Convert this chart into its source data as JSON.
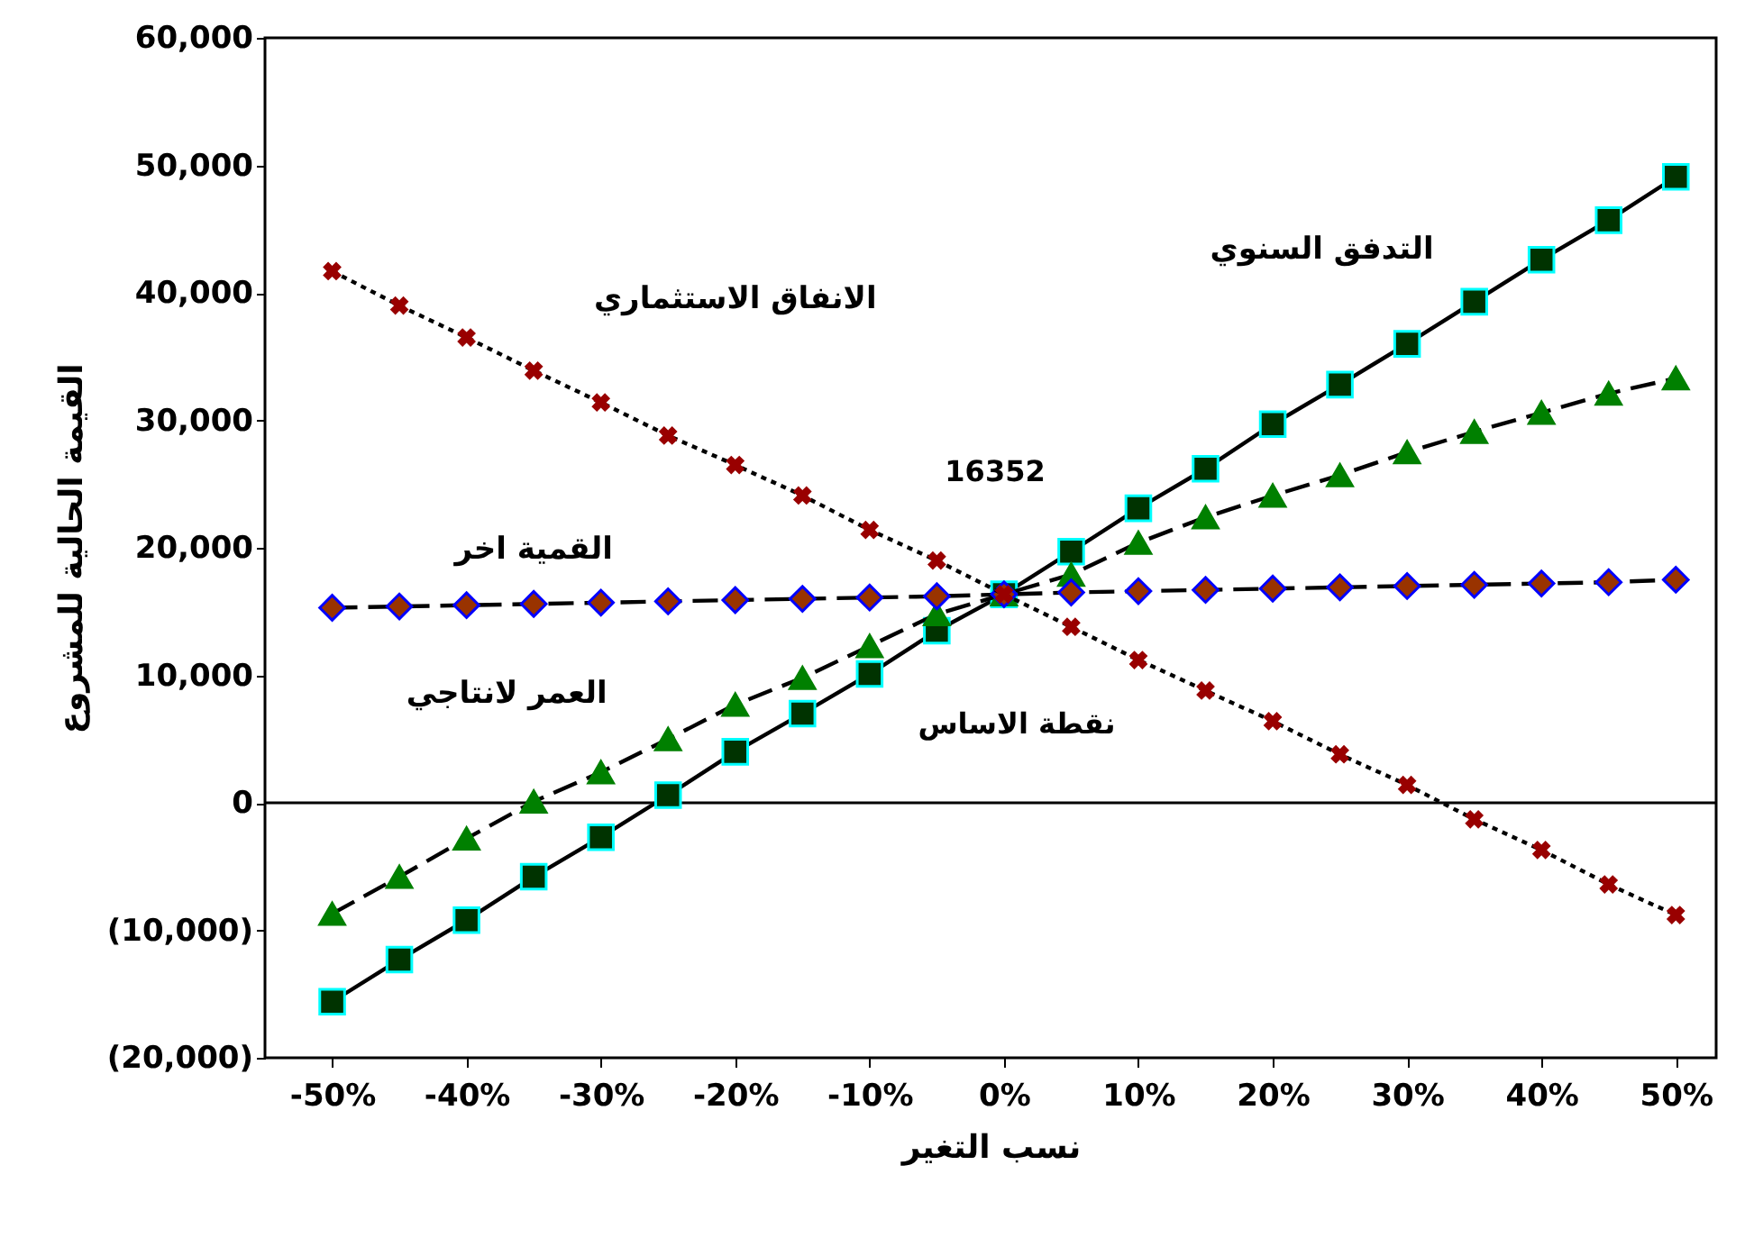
{
  "chart_data": {
    "type": "line",
    "xlabel": "نسب التغير",
    "ylabel": "القيمة الحالية للمشروع",
    "x": [
      -50,
      -45,
      -40,
      -35,
      -30,
      -25,
      -20,
      -15,
      -10,
      -5,
      0,
      5,
      10,
      15,
      20,
      25,
      30,
      35,
      40,
      45,
      50
    ],
    "series": [
      {
        "name": "التدفق السنوي",
        "color": "#003300",
        "marker": "square",
        "line_style": "solid",
        "values": [
          -15600,
          -12300,
          -9200,
          -5800,
          -2700,
          600,
          4000,
          7000,
          10100,
          13500,
          16352,
          19700,
          23100,
          26200,
          29700,
          32800,
          36000,
          39300,
          42600,
          45700,
          49100
        ]
      },
      {
        "name": "العمر لانتاجي",
        "color": "#008000",
        "marker": "triangle",
        "line_style": "dashed",
        "values": [
          -8700,
          -5800,
          -2800,
          100,
          2400,
          5000,
          7700,
          9800,
          12300,
          14800,
          16352,
          17900,
          20400,
          22400,
          24100,
          25700,
          27500,
          29100,
          30600,
          32100,
          33300
        ]
      },
      {
        "name": "القمية اخر",
        "color": "#993300",
        "marker": "diamond",
        "line_style": "dashed",
        "values": [
          15300,
          15400,
          15500,
          15600,
          15700,
          15800,
          15900,
          16000,
          16100,
          16200,
          16352,
          16500,
          16600,
          16700,
          16800,
          16900,
          17000,
          17100,
          17200,
          17300,
          17500
        ]
      },
      {
        "name": "الانفاق الاستثماري",
        "color": "#990000",
        "marker": "cross",
        "line_style": "dotted",
        "values": [
          41700,
          39000,
          36500,
          33900,
          31400,
          28800,
          26500,
          24100,
          21400,
          19000,
          16352,
          13800,
          11200,
          8800,
          6400,
          3800,
          1400,
          -1300,
          -3700,
          -6400,
          -8800
        ]
      }
    ],
    "xlim": [
      -55,
      53
    ],
    "xticks": [
      {
        "value": -50,
        "label": "-50%"
      },
      {
        "value": -40,
        "label": "-40%"
      },
      {
        "value": -30,
        "label": "-30%"
      },
      {
        "value": -20,
        "label": "-20%"
      },
      {
        "value": -10,
        "label": "-10%"
      },
      {
        "value": 0,
        "label": "0%"
      },
      {
        "value": 10,
        "label": "10%"
      },
      {
        "value": 20,
        "label": "20%"
      },
      {
        "value": 30,
        "label": "30%"
      },
      {
        "value": 40,
        "label": "40%"
      },
      {
        "value": 50,
        "label": "50%"
      }
    ],
    "ylim": [
      -20000,
      60000
    ],
    "yticks": [
      {
        "value": -20000,
        "label": "(20,000)"
      },
      {
        "value": -10000,
        "label": "(10,000)"
      },
      0,
      {
        "value": 10000,
        "label": "10,000"
      },
      {
        "value": 20000,
        "label": "20,000"
      },
      {
        "value": 30000,
        "label": "30,000"
      },
      {
        "value": 40000,
        "label": "40,000"
      },
      {
        "value": 50000,
        "label": "50,000"
      },
      {
        "value": 60000,
        "label": "60,000"
      }
    ],
    "ref_lines": [
      {
        "axis": "y",
        "value": 0,
        "color": "#000000"
      }
    ],
    "annotations": [
      "16352",
      "نقطة الاساس"
    ]
  }
}
